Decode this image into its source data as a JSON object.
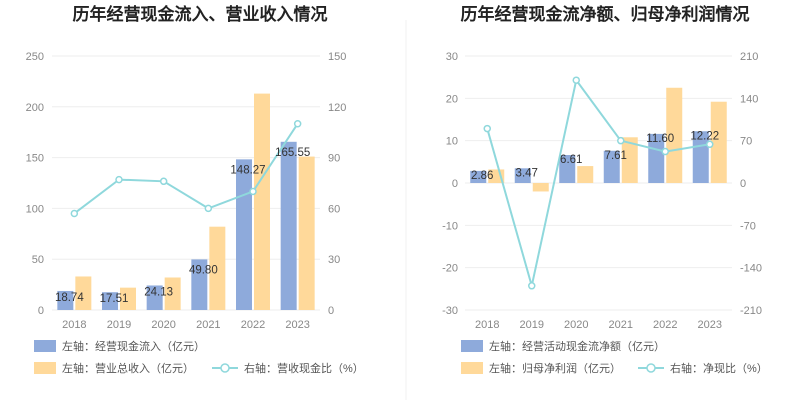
{
  "charts": [
    {
      "title": "历年经营现金流入、营业收入情况",
      "chart_data": {
        "type": "bar",
        "categories": [
          "2018",
          "2019",
          "2020",
          "2021",
          "2022",
          "2023"
        ],
        "series": [
          {
            "name": "左轴：经营现金流入（亿元）",
            "axis": "left",
            "type": "bar",
            "color": "#8eaadb",
            "values": [
              18.74,
              17.51,
              24.13,
              49.8,
              148.27,
              165.55
            ],
            "labels": [
              "18.74",
              "17.51",
              "24.13",
              "49.80",
              "148.27",
              "165.55"
            ]
          },
          {
            "name": "左轴：营业总收入（亿元）",
            "axis": "left",
            "type": "bar",
            "color": "#ffd99a",
            "values": [
              33,
              22,
              32,
              82,
              213,
              151
            ]
          },
          {
            "name": "右轴：营收现金比（%）",
            "axis": "right",
            "type": "line",
            "color": "#8fd8dc",
            "values": [
              57,
              77,
              76,
              60,
              70,
              110
            ]
          }
        ],
        "left_axis": {
          "min": 0,
          "max": 250,
          "ticks": [
            "0",
            "50",
            "100",
            "150",
            "200",
            "250"
          ]
        },
        "right_axis": {
          "min": 0,
          "max": 150,
          "ticks": [
            "0",
            "30",
            "60",
            "90",
            "120",
            "150"
          ]
        },
        "grid": true,
        "legend_position": "bottom"
      }
    },
    {
      "title": "历年经营现金流净额、归母净利润情况",
      "chart_data": {
        "type": "bar",
        "categories": [
          "2018",
          "2019",
          "2020",
          "2021",
          "2022",
          "2023"
        ],
        "series": [
          {
            "name": "左轴：经营活动现金流净额（亿元）",
            "axis": "left",
            "type": "bar",
            "color": "#8eaadb",
            "values": [
              2.86,
              3.47,
              6.61,
              7.61,
              11.6,
              12.22
            ],
            "labels": [
              "2.86",
              "3.47",
              "6.61",
              "7.61",
              "11.60",
              "12.22"
            ]
          },
          {
            "name": "左轴：归母净利润（亿元）",
            "axis": "left",
            "type": "bar",
            "color": "#ffd99a",
            "values": [
              3.2,
              -2.0,
              4.0,
              10.8,
              22.5,
              19.2
            ]
          },
          {
            "name": "右轴：净现比（%）",
            "axis": "right",
            "type": "line",
            "color": "#8fd8dc",
            "values": [
              90,
              -170,
              170,
              70,
              52,
              64
            ]
          }
        ],
        "left_axis": {
          "min": -30,
          "max": 30,
          "ticks": [
            "-30",
            "-20",
            "-10",
            "0",
            "10",
            "20",
            "30"
          ]
        },
        "right_axis": {
          "min": -210,
          "max": 210,
          "ticks": [
            "-210",
            "-140",
            "-70",
            "0",
            "70",
            "140",
            "210"
          ]
        },
        "grid": true,
        "legend_position": "bottom"
      }
    }
  ]
}
